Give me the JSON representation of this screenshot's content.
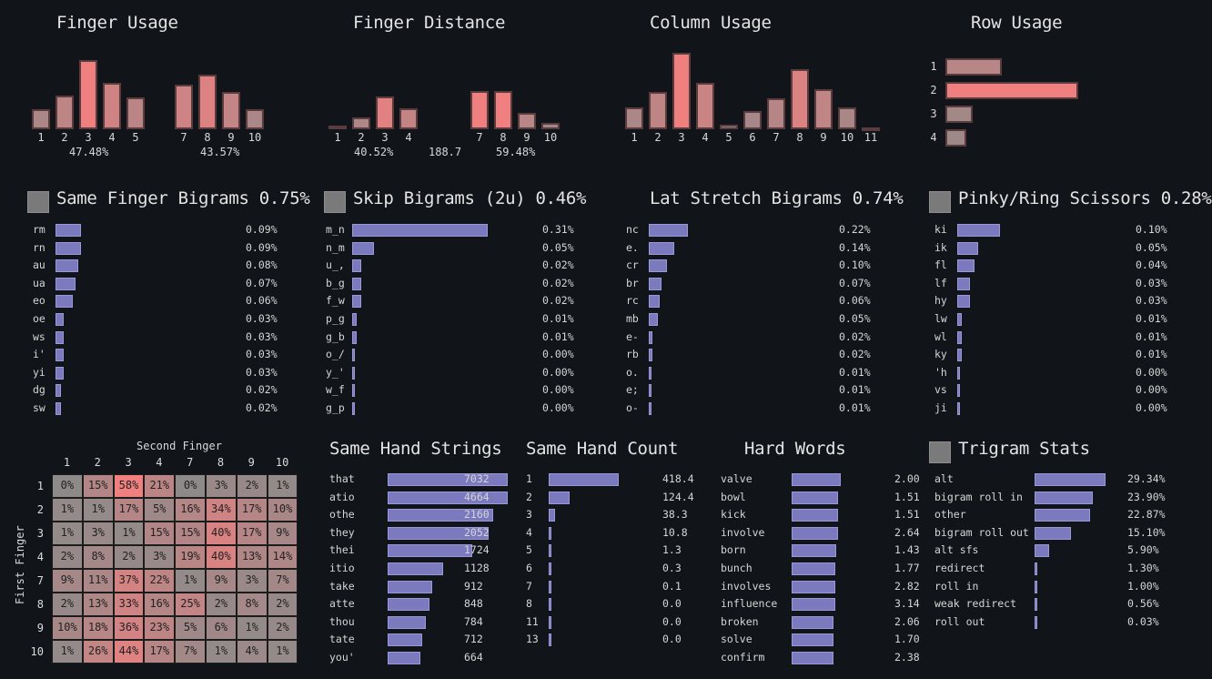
{
  "colors": {
    "background": "#111418",
    "bar_low": "#8f8a8a",
    "bar_high": "#f08080",
    "list_bar": "#7b7abf",
    "toggle": "#7a7a7a"
  },
  "chart_data": [
    {
      "id": "finger_usage",
      "type": "bar",
      "title": "Finger Usage",
      "groups": [
        {
          "categories": [
            "1",
            "2",
            "3",
            "4",
            "5"
          ],
          "values": [
            7.2,
            12.2,
            25.0,
            16.7,
            11.6
          ],
          "total_label": "47.48%"
        },
        {
          "categories": [
            "7",
            "8",
            "9",
            "10"
          ],
          "values": [
            16.2,
            19.8,
            13.4,
            7.2
          ],
          "total_label": "43.57%"
        }
      ]
    },
    {
      "id": "finger_distance",
      "type": "bar",
      "title": "Finger Distance",
      "groups": [
        {
          "categories": [
            "1",
            "2",
            "3",
            "4"
          ],
          "values": [
            1.5,
            4.5,
            12.2,
            7.9
          ],
          "total_label": "40.52%"
        },
        {
          "categories": [
            "7",
            "8",
            "9",
            "10"
          ],
          "values": [
            14.3,
            14.3,
            6.0,
            2.3
          ],
          "total_label": "59.48%"
        }
      ],
      "center_label": "188.7"
    },
    {
      "id": "column_usage",
      "type": "bar",
      "title": "Column Usage",
      "categories": [
        "1",
        "2",
        "3",
        "4",
        "5",
        "6",
        "7",
        "8",
        "9",
        "10",
        "11"
      ],
      "values": [
        8.0,
        13.7,
        27.8,
        16.8,
        1.8,
        6.7,
        11.2,
        21.8,
        14.6,
        7.8,
        0.3
      ]
    },
    {
      "id": "row_usage",
      "type": "bar",
      "orientation": "horizontal",
      "title": "Row Usage",
      "categories": [
        "1",
        "2",
        "3",
        "4"
      ],
      "values": [
        22.6,
        53.3,
        11.0,
        8.4
      ]
    },
    {
      "id": "same_finger_bigrams",
      "type": "bar",
      "orientation": "horizontal",
      "title": "Same Finger Bigrams 0.75%",
      "categories": [
        "rm",
        "rn",
        "au",
        "ua",
        "eo",
        "oe",
        "ws",
        "i'",
        "yi",
        "dg",
        "sw"
      ],
      "values": [
        0.09,
        0.09,
        0.08,
        0.07,
        0.06,
        0.03,
        0.03,
        0.03,
        0.03,
        0.02,
        0.02
      ],
      "value_labels": [
        "0.09%",
        "0.09%",
        "0.08%",
        "0.07%",
        "0.06%",
        "0.03%",
        "0.03%",
        "0.03%",
        "0.03%",
        "0.02%",
        "0.02%"
      ],
      "xmax": 0.48
    },
    {
      "id": "skip_bigrams",
      "type": "bar",
      "orientation": "horizontal",
      "title": "Skip Bigrams (2u) 0.46%",
      "categories": [
        "m_n",
        "n_m",
        "u_,",
        "b_g",
        "f_w",
        "p_g",
        "g_b",
        "o_/",
        "y_'",
        "w_f",
        "g_p"
      ],
      "values": [
        0.31,
        0.05,
        0.02,
        0.02,
        0.02,
        0.01,
        0.01,
        0.004,
        0.003,
        0.003,
        0.003
      ],
      "value_labels": [
        "0.31%",
        "0.05%",
        "0.02%",
        "0.02%",
        "0.02%",
        "0.01%",
        "0.01%",
        "0.00%",
        "0.00%",
        "0.00%",
        "0.00%"
      ],
      "xmax": 0.31
    },
    {
      "id": "lat_stretch_bigrams",
      "type": "bar",
      "orientation": "horizontal",
      "title": "Lat Stretch Bigrams 0.74%",
      "categories": [
        "nc",
        "e.",
        "cr",
        "br",
        "rc",
        "mb",
        "e-",
        "rb",
        "o.",
        "e;",
        "o-"
      ],
      "values": [
        0.22,
        0.14,
        0.1,
        0.07,
        0.06,
        0.05,
        0.02,
        0.02,
        0.01,
        0.01,
        0.01
      ],
      "value_labels": [
        "0.22%",
        "0.14%",
        "0.10%",
        "0.07%",
        "0.06%",
        "0.05%",
        "0.02%",
        "0.02%",
        "0.01%",
        "0.01%",
        "0.01%"
      ],
      "xmax": 0.75
    },
    {
      "id": "pinky_ring_scissors",
      "type": "bar",
      "orientation": "horizontal",
      "title": "Pinky/Ring Scissors 0.28%",
      "categories": [
        "ki",
        "ik",
        "fl",
        "lf",
        "hy",
        "lw",
        "wl",
        "ky",
        "'h",
        "vs",
        "ji"
      ],
      "values": [
        0.1,
        0.05,
        0.04,
        0.03,
        0.03,
        0.01,
        0.01,
        0.01,
        0.004,
        0.003,
        0.003
      ],
      "value_labels": [
        "0.10%",
        "0.05%",
        "0.04%",
        "0.03%",
        "0.03%",
        "0.01%",
        "0.01%",
        "0.01%",
        "0.00%",
        "0.00%",
        "0.00%"
      ],
      "xmax": 0.215
    },
    {
      "id": "sfb_heatmap",
      "type": "heatmap",
      "xlabel": "Second Finger",
      "ylabel": "First Finger",
      "x_categories": [
        "1",
        "2",
        "3",
        "4",
        "7",
        "8",
        "9",
        "10"
      ],
      "y_categories": [
        "1",
        "2",
        "3",
        "4",
        "7",
        "8",
        "9",
        "10"
      ],
      "values": [
        [
          0,
          15,
          58,
          21,
          0,
          3,
          2,
          1
        ],
        [
          1,
          1,
          17,
          5,
          16,
          34,
          17,
          10
        ],
        [
          1,
          3,
          1,
          15,
          15,
          40,
          17,
          9
        ],
        [
          2,
          8,
          2,
          3,
          19,
          40,
          13,
          14
        ],
        [
          9,
          11,
          37,
          22,
          1,
          9,
          3,
          7
        ],
        [
          2,
          13,
          33,
          16,
          25,
          2,
          8,
          2
        ],
        [
          10,
          18,
          36,
          23,
          5,
          6,
          1,
          2
        ],
        [
          1,
          26,
          44,
          17,
          7,
          1,
          4,
          1
        ]
      ],
      "unit": "%"
    },
    {
      "id": "same_hand_strings",
      "type": "bar",
      "orientation": "horizontal",
      "title": "Same Hand Strings",
      "categories": [
        "that",
        "atio",
        "othe",
        "they",
        "thei",
        "itio",
        "take",
        "atte",
        "thou",
        "tate",
        "you'"
      ],
      "values": [
        7032,
        4664,
        2160,
        2052,
        1724,
        1128,
        912,
        848,
        784,
        712,
        664
      ],
      "value_labels": [
        "7032",
        "4664",
        "2160",
        "2052",
        "1724",
        "1128",
        "912",
        "848",
        "784",
        "712",
        "664"
      ],
      "xmax": 2450
    },
    {
      "id": "same_hand_count",
      "type": "bar",
      "orientation": "horizontal",
      "title": "Same Hand Count",
      "categories": [
        "1",
        "2",
        "3",
        "4",
        "5",
        "6",
        "7",
        "8",
        "11",
        "13"
      ],
      "values": [
        418.4,
        124.4,
        38.3,
        10.8,
        1.3,
        0.3,
        0.1,
        0.0,
        0.0,
        0.0
      ],
      "value_labels": [
        "418.4",
        "124.4",
        "38.3",
        "10.8",
        "1.3",
        "0.3",
        "0.1",
        "0.0",
        "0.0",
        "0.0"
      ],
      "xmax": 418.4
    },
    {
      "id": "hard_words",
      "type": "bar",
      "orientation": "horizontal",
      "title": "Hard Words",
      "categories": [
        "valve",
        "bowl",
        "kick",
        "involve",
        "born",
        "bunch",
        "involves",
        "influence",
        "broken",
        "solve",
        "confirm"
      ],
      "bar_values": [
        1.0,
        0.95,
        0.95,
        0.95,
        0.91,
        0.89,
        0.89,
        0.88,
        0.86,
        0.86,
        0.86
      ],
      "value_labels": [
        "2.00",
        "1.51",
        "1.51",
        "2.64",
        "1.43",
        "1.77",
        "2.82",
        "3.14",
        "2.06",
        "1.70",
        "2.38"
      ],
      "xmax": 1.0
    },
    {
      "id": "trigram_stats",
      "type": "bar",
      "orientation": "horizontal",
      "title": "Trigram Stats",
      "categories": [
        "alt",
        "bigram roll in",
        "other",
        "bigram roll out",
        "alt sfs",
        "redirect",
        "roll in",
        "weak redirect",
        "roll out"
      ],
      "values": [
        29.34,
        23.9,
        22.87,
        15.1,
        5.9,
        1.3,
        1.0,
        0.56,
        0.03
      ],
      "value_labels": [
        "29.34%",
        "23.90%",
        "22.87%",
        "15.10%",
        "5.90%",
        "1.30%",
        "1.00%",
        "0.56%",
        "0.03%"
      ],
      "xmax": 29.34
    }
  ]
}
